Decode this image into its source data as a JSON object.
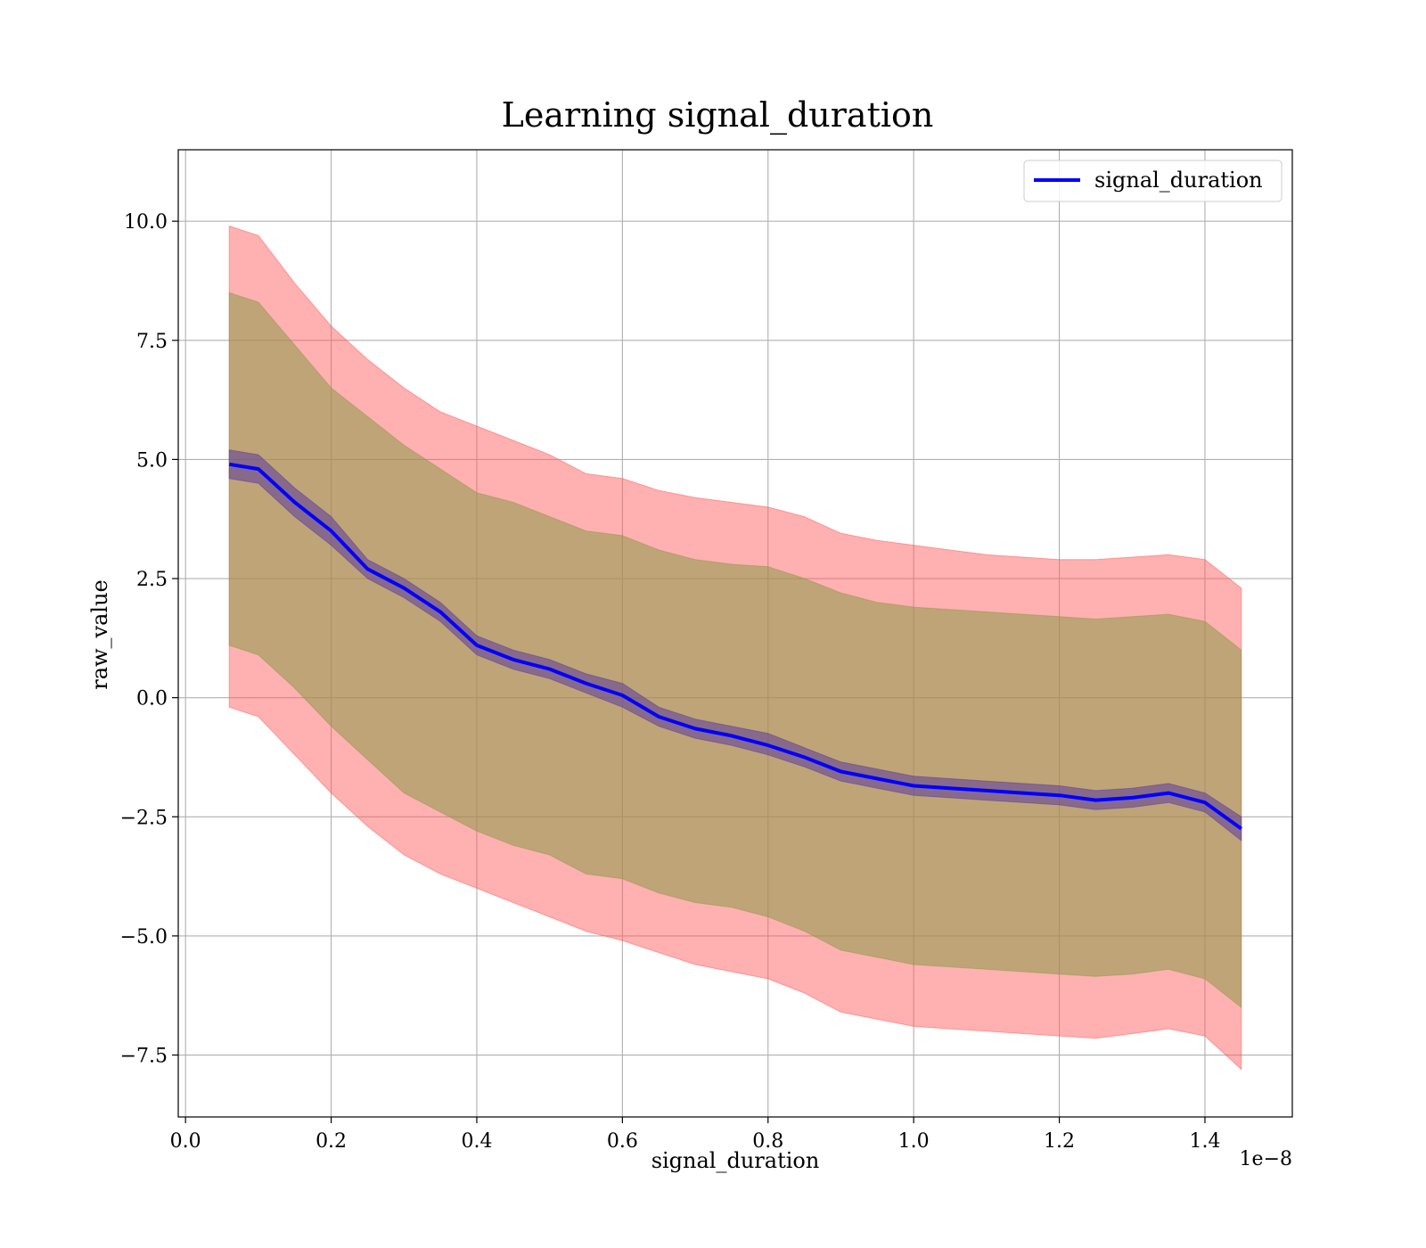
{
  "chart_data": {
    "type": "line",
    "title": "Learning signal_duration",
    "xlabel": "signal_duration",
    "ylabel": "raw_value",
    "x_offset_text": "1e−8",
    "xlim": [
      -0.01,
      1.52
    ],
    "ylim": [
      -8.8,
      11.5
    ],
    "x_ticks": [
      0.0,
      0.2,
      0.4,
      0.6,
      0.8,
      1.0,
      1.2,
      1.4
    ],
    "x_tick_labels": [
      "0.0",
      "0.2",
      "0.4",
      "0.6",
      "0.8",
      "1.0",
      "1.2",
      "1.4"
    ],
    "y_ticks": [
      10.0,
      7.5,
      5.0,
      2.5,
      0.0,
      -2.5,
      -5.0,
      -7.5
    ],
    "y_tick_labels": [
      "10.0",
      "7.5",
      "5.0",
      "2.5",
      "0.0",
      "−2.5",
      "−5.0",
      "−7.5"
    ],
    "grid": true,
    "legend_position": "top-right",
    "colors": {
      "line": "#0000ff",
      "outer_band": "#ff5a5a",
      "middle_band": "#8b9a4a",
      "inner_band": "#5a3a9a",
      "grid": "#b0b0b0"
    },
    "series": [
      {
        "name": "signal_duration",
        "x": [
          0.06,
          0.1,
          0.15,
          0.2,
          0.25,
          0.3,
          0.35,
          0.4,
          0.45,
          0.5,
          0.55,
          0.6,
          0.65,
          0.7,
          0.75,
          0.8,
          0.85,
          0.9,
          0.95,
          1.0,
          1.05,
          1.1,
          1.15,
          1.2,
          1.25,
          1.3,
          1.35,
          1.4,
          1.45
        ],
        "y": [
          4.9,
          4.8,
          4.1,
          3.5,
          2.7,
          2.3,
          1.8,
          1.1,
          0.8,
          0.6,
          0.3,
          0.05,
          -0.4,
          -0.65,
          -0.8,
          -1.0,
          -1.25,
          -1.55,
          -1.7,
          -1.85,
          -1.9,
          -1.95,
          -2.0,
          -2.05,
          -2.15,
          -2.1,
          -2.0,
          -2.2,
          -2.75
        ],
        "outer_band_upper": [
          9.9,
          9.7,
          8.7,
          7.8,
          7.1,
          6.5,
          6.0,
          5.7,
          5.4,
          5.1,
          4.7,
          4.6,
          4.35,
          4.2,
          4.1,
          4.0,
          3.8,
          3.45,
          3.3,
          3.2,
          3.1,
          3.0,
          2.95,
          2.9,
          2.9,
          2.95,
          3.0,
          2.9,
          2.3
        ],
        "outer_band_lower": [
          -0.2,
          -0.4,
          -1.2,
          -2.0,
          -2.7,
          -3.3,
          -3.7,
          -4.0,
          -4.3,
          -4.6,
          -4.9,
          -5.1,
          -5.35,
          -5.6,
          -5.75,
          -5.9,
          -6.2,
          -6.6,
          -6.75,
          -6.9,
          -6.95,
          -7.0,
          -7.05,
          -7.1,
          -7.15,
          -7.05,
          -6.95,
          -7.1,
          -7.8
        ],
        "middle_band_upper": [
          8.5,
          8.3,
          7.4,
          6.5,
          5.9,
          5.3,
          4.8,
          4.3,
          4.1,
          3.8,
          3.5,
          3.4,
          3.1,
          2.9,
          2.8,
          2.75,
          2.5,
          2.2,
          2.0,
          1.9,
          1.85,
          1.8,
          1.75,
          1.7,
          1.65,
          1.7,
          1.75,
          1.6,
          1.0
        ],
        "middle_band_lower": [
          1.1,
          0.9,
          0.2,
          -0.6,
          -1.3,
          -2.0,
          -2.4,
          -2.8,
          -3.1,
          -3.3,
          -3.7,
          -3.8,
          -4.1,
          -4.3,
          -4.4,
          -4.6,
          -4.9,
          -5.3,
          -5.45,
          -5.6,
          -5.65,
          -5.7,
          -5.75,
          -5.8,
          -5.85,
          -5.8,
          -5.7,
          -5.9,
          -6.5
        ],
        "inner_band_upper": [
          5.2,
          5.1,
          4.4,
          3.8,
          2.9,
          2.5,
          2.0,
          1.3,
          1.0,
          0.8,
          0.5,
          0.3,
          -0.2,
          -0.45,
          -0.6,
          -0.75,
          -1.05,
          -1.35,
          -1.5,
          -1.65,
          -1.7,
          -1.75,
          -1.8,
          -1.85,
          -1.95,
          -1.9,
          -1.8,
          -2.0,
          -2.5
        ],
        "inner_band_lower": [
          4.6,
          4.5,
          3.8,
          3.2,
          2.5,
          2.1,
          1.6,
          0.9,
          0.6,
          0.4,
          0.1,
          -0.2,
          -0.6,
          -0.85,
          -1.0,
          -1.2,
          -1.45,
          -1.75,
          -1.9,
          -2.05,
          -2.1,
          -2.15,
          -2.2,
          -2.25,
          -2.35,
          -2.3,
          -2.2,
          -2.4,
          -3.0
        ]
      }
    ]
  }
}
